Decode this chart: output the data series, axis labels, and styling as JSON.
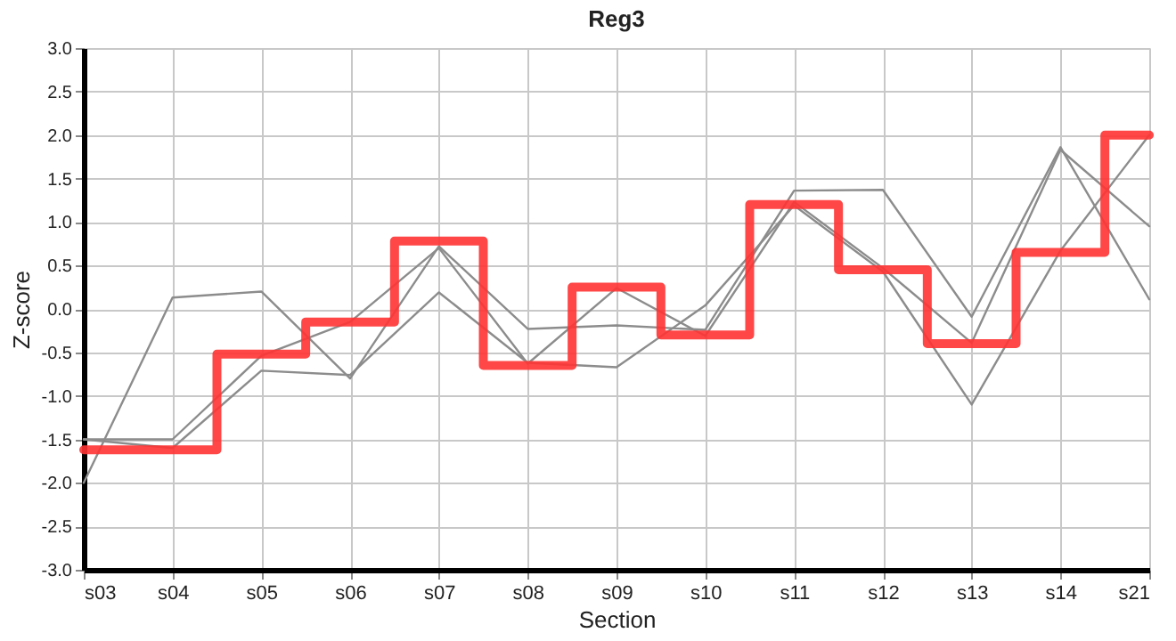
{
  "chart_data": {
    "type": "line",
    "title": "Reg3",
    "xlabel": "Section",
    "ylabel": "Z-score",
    "categories": [
      "s03",
      "s04",
      "s05",
      "s06",
      "s07",
      "s08",
      "s09",
      "s10",
      "s11",
      "s12",
      "s13",
      "s14",
      "s21"
    ],
    "series": [
      {
        "color": "#8c8c8c",
        "values": [
          -2.0,
          0.13,
          0.2,
          -0.8,
          0.72,
          -0.23,
          -0.19,
          -0.24,
          1.36,
          1.37,
          -0.09,
          1.86,
          0.11
        ]
      },
      {
        "color": "#8c8c8c",
        "values": [
          -1.5,
          -1.5,
          -0.54,
          -0.15,
          0.7,
          -0.63,
          0.24,
          -0.31,
          1.23,
          0.47,
          -0.39,
          1.83,
          0.95
        ]
      },
      {
        "color": "#8c8c8c",
        "values": [
          -1.5,
          -1.6,
          -0.71,
          -0.76,
          0.19,
          -0.62,
          -0.67,
          0.04,
          1.19,
          0.43,
          -1.1,
          0.67,
          2.0
        ]
      },
      {
        "type": "step",
        "color": "#ff3333",
        "values": [
          -1.62,
          -1.62,
          -0.52,
          -0.15,
          0.78,
          -0.65,
          0.25,
          -0.3,
          1.2,
          0.45,
          -0.4,
          0.65,
          2.0
        ]
      }
    ],
    "ylim": [
      -3.0,
      3.0
    ],
    "yticks": [
      {
        "value": -3,
        "label": "-3.0"
      },
      {
        "value": -2.5,
        "label": "-2.5"
      },
      {
        "value": -2,
        "label": "-2.0"
      },
      {
        "value": -1.5,
        "label": "-1.5"
      },
      {
        "value": -1,
        "label": "-1.0"
      },
      {
        "value": -0.5,
        "label": "-0.5"
      },
      {
        "value": 0,
        "label": "0.0"
      },
      {
        "value": 0.5,
        "label": "0.5"
      },
      {
        "value": 1,
        "label": "1.0"
      },
      {
        "value": 1.5,
        "label": "1.5"
      },
      {
        "value": 2,
        "label": "2.0"
      },
      {
        "value": 2.5,
        "label": "2.5"
      },
      {
        "value": 3,
        "label": "3.0"
      }
    ],
    "grid": true,
    "legend": false,
    "marker": "none",
    "line_style": "solid"
  }
}
